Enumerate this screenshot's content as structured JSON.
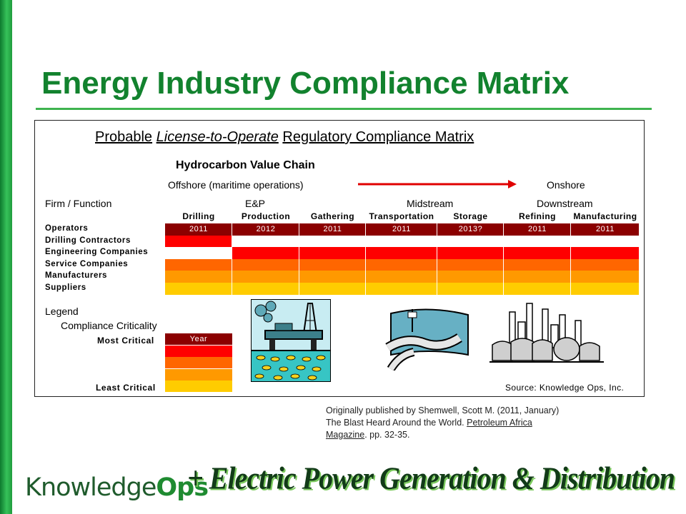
{
  "slide_title": "Energy Industry Compliance Matrix",
  "matrix": {
    "heading_left": "Probable",
    "heading_italic": "License-to-Operate",
    "heading_right": "Regulatory Compliance Matrix",
    "value_chain_title": "Hydrocarbon Value Chain",
    "offshore_label": "Offshore (maritime operations)",
    "onshore_label": "Onshore",
    "firm_function_label": "Firm / Function",
    "segments": [
      "E&P",
      "Midstream",
      "Downstream"
    ],
    "columns": [
      "Drilling",
      "Production",
      "Gathering",
      "Transportation",
      "Storage",
      "Refining",
      "Manufacturing"
    ],
    "rows": [
      "Operators",
      "Drilling Contractors",
      "Engineering Companies",
      "Service Companies",
      "Manufacturers",
      "Suppliers"
    ],
    "years": [
      "2011",
      "2012",
      "2011",
      "2011",
      "2013?",
      "2011",
      "2011"
    ],
    "levels_note": "criticality level 1 (most) to 5 (least), 0 = none",
    "levels": [
      [
        1,
        1,
        1,
        1,
        1,
        1,
        1
      ],
      [
        2,
        0,
        0,
        0,
        0,
        0,
        0
      ],
      [
        0,
        2,
        2,
        2,
        2,
        2,
        2
      ],
      [
        3,
        3,
        3,
        3,
        3,
        3,
        3
      ],
      [
        4,
        4,
        4,
        4,
        4,
        4,
        4
      ],
      [
        5,
        5,
        5,
        5,
        5,
        5,
        5
      ]
    ],
    "source": "Source: Knowledge Ops, Inc."
  },
  "legend": {
    "title": "Legend",
    "subtitle": "Compliance Criticality",
    "most_label": "Most Critical",
    "least_label": "Least Critical",
    "year_label": "Year"
  },
  "colors": {
    "level1": "#8b0000",
    "level2": "#ff0000",
    "level3": "#ff6600",
    "level4": "#ff9900",
    "level5": "#ffcc00",
    "title_green": "#12822e"
  },
  "citation": {
    "line1": "Originally published by Shemwell, Scott M. (2011, January)",
    "line2_prefix": "The Blast Heard Around the World. ",
    "journal_a": "Petroleum Africa",
    "journal_b": "Magazine",
    "pages": ". pp. 32-35."
  },
  "logo": {
    "part1": "Knowledge",
    "part2": "Ops"
  },
  "slogan": "+ Electric Power Generation & Distribution",
  "icons": [
    "offshore-platform-icon",
    "pipeline-icon",
    "refinery-icon"
  ]
}
